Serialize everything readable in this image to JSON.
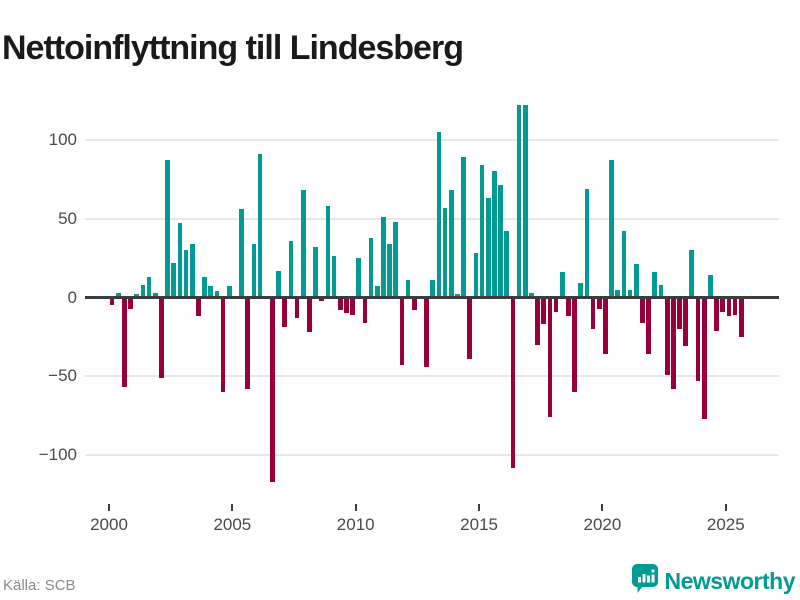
{
  "title": "Nettoinflyttning till Lindesberg",
  "footer": {
    "source": "Källa: SCB",
    "brand": "Newsworthy"
  },
  "colors": {
    "positive": "#019b94",
    "negative": "#98003b",
    "zero_line": "#3c3c3c",
    "gridline": "#e8e8e8",
    "axis_text": "#4a4a4a",
    "title_text": "#1a1a1a",
    "source_text": "#8c8c8c",
    "brand_teal": "#019b94"
  },
  "chart_data": {
    "type": "bar",
    "title": "Nettoinflyttning till Lindesberg",
    "frequency": "quarterly",
    "start_period": "2000Q1",
    "end_period": "2025Q3",
    "grid": "horizontal",
    "legend": "none",
    "x_tick_labels": [
      "2000",
      "2005",
      "2010",
      "2015",
      "2020",
      "2025"
    ],
    "y_ticks": [
      100,
      50,
      0,
      -50,
      -100
    ],
    "y_tick_labels": [
      "100",
      "50",
      "0",
      "−50",
      "−100"
    ],
    "ylim": [
      -125,
      135
    ],
    "series": [
      {
        "name": "Nettoinflyttning",
        "years": [
          {
            "year": 2000,
            "values": [
              -5,
              3,
              -57,
              -7
            ]
          },
          {
            "year": 2001,
            "values": [
              2,
              8,
              13,
              3
            ]
          },
          {
            "year": 2002,
            "values": [
              -51,
              87,
              22,
              47
            ]
          },
          {
            "year": 2003,
            "values": [
              30,
              34,
              -12,
              13
            ]
          },
          {
            "year": 2004,
            "values": [
              7,
              4,
              -60,
              7
            ]
          },
          {
            "year": 2005,
            "values": [
              0,
              56,
              -58,
              34
            ]
          },
          {
            "year": 2006,
            "values": [
              91,
              0,
              -117,
              17
            ]
          },
          {
            "year": 2007,
            "values": [
              -19,
              36,
              -13,
              68
            ]
          },
          {
            "year": 2008,
            "values": [
              -22,
              32,
              -2,
              58
            ]
          },
          {
            "year": 2009,
            "values": [
              26,
              -8,
              -10,
              -11
            ]
          },
          {
            "year": 2010,
            "values": [
              25,
              -16,
              38,
              7
            ]
          },
          {
            "year": 2011,
            "values": [
              51,
              34,
              48,
              -43
            ]
          },
          {
            "year": 2012,
            "values": [
              11,
              -8,
              0,
              -44
            ]
          },
          {
            "year": 2013,
            "values": [
              11,
              105,
              57,
              68
            ]
          },
          {
            "year": 2014,
            "values": [
              2,
              89,
              -39,
              28
            ]
          },
          {
            "year": 2015,
            "values": [
              84,
              63,
              80,
              71
            ]
          },
          {
            "year": 2016,
            "values": [
              42,
              -108,
              122,
              122
            ]
          },
          {
            "year": 2017,
            "values": [
              3,
              -30,
              -17,
              -76
            ]
          },
          {
            "year": 2018,
            "values": [
              -9,
              16,
              -12,
              -60
            ]
          },
          {
            "year": 2019,
            "values": [
              9,
              69,
              -20,
              -7
            ]
          },
          {
            "year": 2020,
            "values": [
              -36,
              87,
              5,
              42
            ]
          },
          {
            "year": 2021,
            "values": [
              5,
              21,
              -16,
              -36
            ]
          },
          {
            "year": 2022,
            "values": [
              16,
              8,
              -49,
              -58
            ]
          },
          {
            "year": 2023,
            "values": [
              -20,
              -31,
              30,
              -53
            ]
          },
          {
            "year": 2024,
            "values": [
              -77,
              14,
              -21,
              -9
            ]
          },
          {
            "year": 2025,
            "values": [
              -12,
              -11,
              -25
            ]
          }
        ]
      }
    ]
  }
}
